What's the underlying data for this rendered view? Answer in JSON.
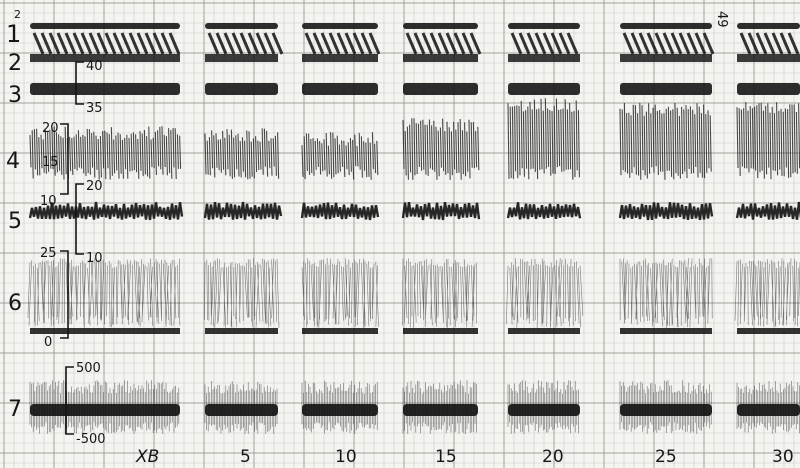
{
  "chart_data": {
    "type": "line",
    "title": "",
    "xlabel": "",
    "ylabel": "",
    "grid": true,
    "x_tick_labels": [
      "ХВ",
      "5",
      "10",
      "15",
      "20",
      "25",
      "30"
    ],
    "corner_marks": [
      "2",
      "49"
    ],
    "channels": [
      {
        "id": "1",
        "label": "1",
        "scale": []
      },
      {
        "id": "2",
        "label": "2",
        "scale": [
          "40"
        ]
      },
      {
        "id": "3",
        "label": "3",
        "scale": [
          "35"
        ]
      },
      {
        "id": "4",
        "label": "4",
        "scale": [
          "20",
          "15",
          "10"
        ]
      },
      {
        "id": "5",
        "label": "5",
        "scale": [
          "20",
          "10"
        ]
      },
      {
        "id": "6",
        "label": "6",
        "scale": [
          "25",
          "0"
        ]
      },
      {
        "id": "7",
        "label": "7",
        "scale": [
          "500",
          "-500"
        ]
      }
    ]
  },
  "colors": {
    "paper": "#f4f4f1",
    "grid_minor": "#c9cbc6",
    "grid_major": "#9fa39c",
    "ink": "#111111"
  }
}
